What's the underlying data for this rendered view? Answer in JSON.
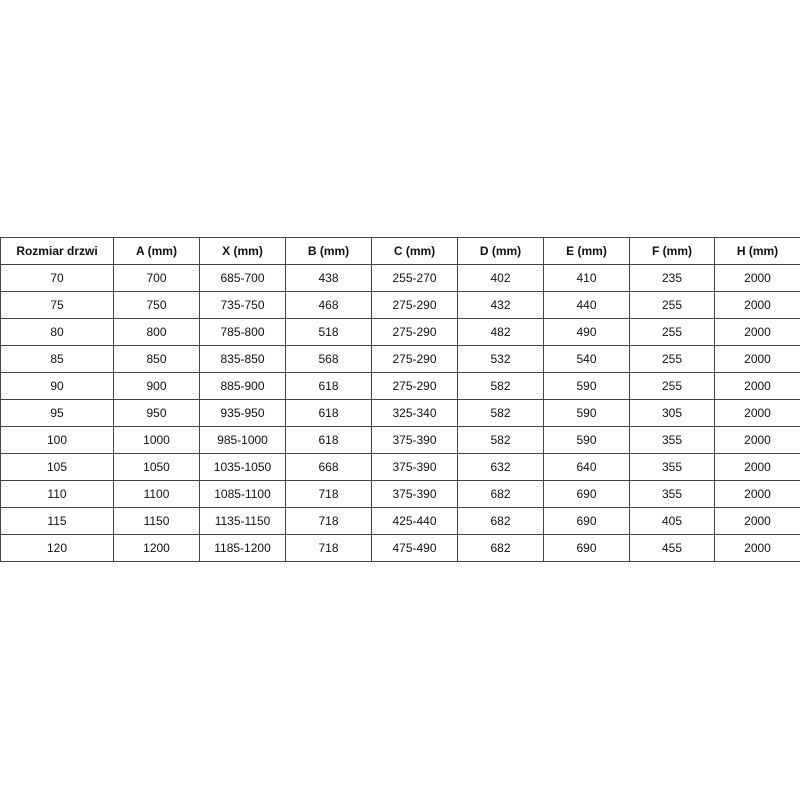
{
  "table": {
    "headers": [
      "Rozmiar drzwi",
      "A (mm)",
      "X (mm)",
      "B (mm)",
      "C (mm)",
      "D (mm)",
      "E (mm)",
      "F (mm)",
      "H (mm)"
    ],
    "rows": [
      [
        "70",
        "700",
        "685-700",
        "438",
        "255-270",
        "402",
        "410",
        "235",
        "2000"
      ],
      [
        "75",
        "750",
        "735-750",
        "468",
        "275-290",
        "432",
        "440",
        "255",
        "2000"
      ],
      [
        "80",
        "800",
        "785-800",
        "518",
        "275-290",
        "482",
        "490",
        "255",
        "2000"
      ],
      [
        "85",
        "850",
        "835-850",
        "568",
        "275-290",
        "532",
        "540",
        "255",
        "2000"
      ],
      [
        "90",
        "900",
        "885-900",
        "618",
        "275-290",
        "582",
        "590",
        "255",
        "2000"
      ],
      [
        "95",
        "950",
        "935-950",
        "618",
        "325-340",
        "582",
        "590",
        "305",
        "2000"
      ],
      [
        "100",
        "1000",
        "985-1000",
        "618",
        "375-390",
        "582",
        "590",
        "355",
        "2000"
      ],
      [
        "105",
        "1050",
        "1035-1050",
        "668",
        "375-390",
        "632",
        "640",
        "355",
        "2000"
      ],
      [
        "110",
        "1100",
        "1085-1100",
        "718",
        "375-390",
        "682",
        "690",
        "355",
        "2000"
      ],
      [
        "115",
        "1150",
        "1135-1150",
        "718",
        "425-440",
        "682",
        "690",
        "405",
        "2000"
      ],
      [
        "120",
        "1200",
        "1185-1200",
        "718",
        "475-490",
        "682",
        "690",
        "455",
        "2000"
      ]
    ]
  }
}
